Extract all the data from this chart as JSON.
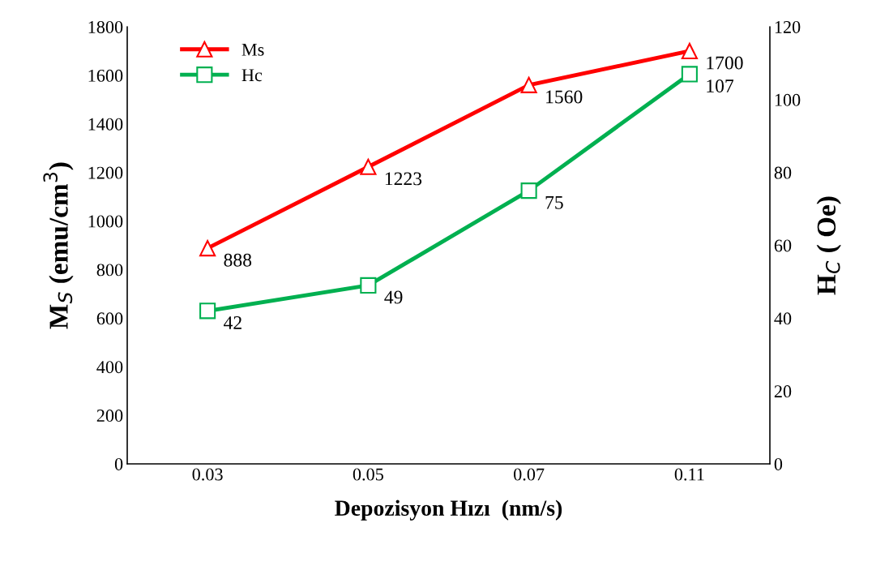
{
  "chart_data": {
    "type": "line",
    "xlabel": "Depozisyon Hızı  (nm/s)",
    "ylabel": "M$_{S}$ (emu/cm$^{3}$)",
    "y2label": "H$_{C}$ ( Oe)",
    "categories": [
      "0.03",
      "0.05",
      "0.07",
      "0.11"
    ],
    "series": [
      {
        "name": "Ms",
        "color": "#ff0000",
        "marker": "triangle",
        "values": [
          888,
          1223,
          1560,
          1700
        ]
      },
      {
        "name": "Hc",
        "color": "#00b050",
        "marker": "square",
        "axis": "y2",
        "values": [
          42,
          49,
          75,
          107
        ]
      }
    ],
    "ylim": [
      0,
      1800
    ],
    "yticks": [
      0,
      200,
      400,
      600,
      800,
      1000,
      1200,
      1400,
      1600,
      1800
    ],
    "y2lim": [
      0,
      120
    ],
    "y2ticks": [
      0,
      20,
      40,
      60,
      80,
      100,
      120
    ],
    "data_labels": true,
    "legend": "top left",
    "grid": false,
    "line_style": "solid"
  }
}
